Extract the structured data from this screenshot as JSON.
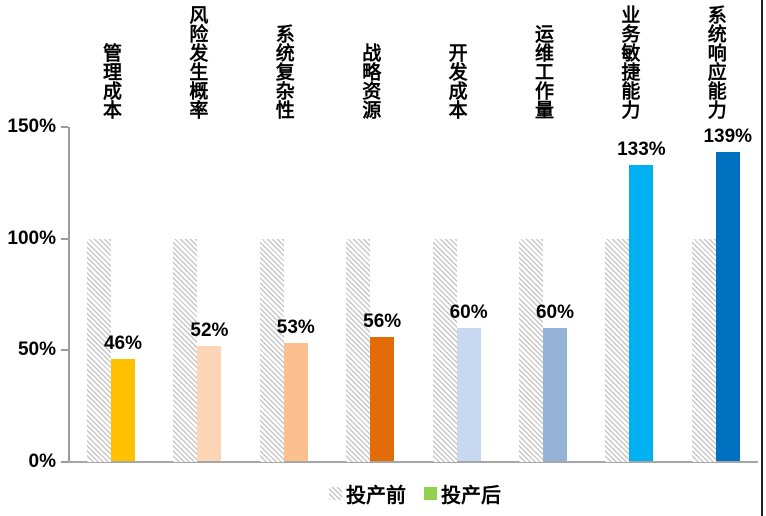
{
  "chart_data": {
    "type": "bar",
    "categories": [
      "管理成本",
      "风险发生概率",
      "系统复杂性",
      "战略资源",
      "开发成本",
      "运维工作量",
      "业务敏捷能力",
      "系统响应能力"
    ],
    "series": [
      {
        "name": "投产前",
        "values": [
          100,
          100,
          100,
          100,
          100,
          100,
          100,
          100
        ],
        "style": "hatched",
        "hatch_color": "#C7C7C7"
      },
      {
        "name": "投产后",
        "values": [
          46,
          52,
          53,
          56,
          60,
          60,
          133,
          139
        ],
        "colors": [
          "#FFC000",
          "#FBD5B5",
          "#FAC090",
          "#E36C09",
          "#C6D9F1",
          "#95B3D7",
          "#00B0F0",
          "#0070C0"
        ]
      }
    ],
    "value_labels": [
      "46%",
      "52%",
      "53%",
      "56%",
      "60%",
      "60%",
      "133%",
      "139%"
    ],
    "yticks": [
      "150%",
      "100%",
      "50%",
      "0%"
    ],
    "ylim": [
      0,
      150
    ],
    "grid": false,
    "legend_position": "bottom",
    "legend": [
      {
        "label": "投产前",
        "swatch": "hatched"
      },
      {
        "label": "投产后",
        "swatch_color": "#92D050"
      }
    ],
    "axis_color": "#9B9B9B",
    "title": "",
    "xlabel": "",
    "ylabel": ""
  }
}
